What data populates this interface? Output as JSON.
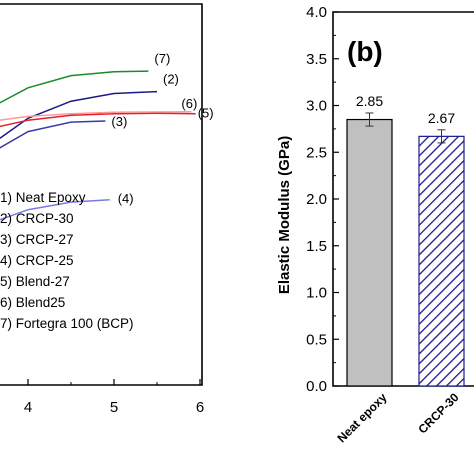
{
  "chart_data": [
    {
      "type": "line",
      "panel": "a",
      "xlabel": "",
      "ylabel": "",
      "x_ticks": [
        "4",
        "5",
        "6"
      ],
      "xlim_visible": [
        3.5,
        6.0
      ],
      "series": [
        {
          "label": "(1)",
          "name": "Neat Epoxy",
          "color": "#000000",
          "visible": false
        },
        {
          "label": "(2)",
          "name": "CRCP-30",
          "color": "#1a1a8c",
          "end_x": 5.5,
          "points": [
            [
              3.5,
              0.62
            ],
            [
              4.0,
              0.7
            ],
            [
              4.5,
              0.745
            ],
            [
              5.0,
              0.765
            ],
            [
              5.5,
              0.77
            ]
          ]
        },
        {
          "label": "(3)",
          "name": "CRCP-27",
          "color": "#3a3aa8",
          "end_x": 4.9,
          "points": [
            [
              3.5,
              0.6
            ],
            [
              4.0,
              0.665
            ],
            [
              4.5,
              0.69
            ],
            [
              4.9,
              0.693
            ]
          ]
        },
        {
          "label": "(4)",
          "name": "CRCP-25",
          "color": "#7a7ae6",
          "end_x": 4.95,
          "points": [
            [
              3.5,
              0.42
            ],
            [
              4.0,
              0.46
            ],
            [
              4.5,
              0.48
            ],
            [
              4.95,
              0.486
            ]
          ]
        },
        {
          "label": "(5)",
          "name": "Blend-27",
          "color": "#e0202a",
          "end_x": 5.95,
          "points": [
            [
              3.5,
              0.67
            ],
            [
              4.0,
              0.695
            ],
            [
              4.5,
              0.708
            ],
            [
              5.0,
              0.712
            ],
            [
              5.5,
              0.713
            ],
            [
              5.95,
              0.712
            ]
          ]
        },
        {
          "label": "(6)",
          "name": "Blend25",
          "color": "#ff9999",
          "end_x": 5.9,
          "points": [
            [
              3.5,
              0.69
            ],
            [
              4.0,
              0.705
            ],
            [
              4.5,
              0.712
            ],
            [
              5.0,
              0.716
            ],
            [
              5.9,
              0.717
            ]
          ]
        },
        {
          "label": "(7)",
          "name": "Fortegra 100 (BCP)",
          "color": "#1a8c2a",
          "end_x": 5.4,
          "points": [
            [
              3.5,
              0.72
            ],
            [
              4.0,
              0.78
            ],
            [
              4.5,
              0.812
            ],
            [
              5.0,
              0.822
            ],
            [
              5.4,
              0.824
            ]
          ]
        }
      ],
      "legend": [
        {
          "label": "1) Neat Epoxy"
        },
        {
          "label": "2) CRCP-30"
        },
        {
          "label": "3) CRCP-27"
        },
        {
          "label": "4) CRCP-25"
        },
        {
          "label": "5) Blend-27"
        },
        {
          "label": "6) Blend25"
        },
        {
          "label": "7) Fortegra 100 (BCP)"
        }
      ]
    },
    {
      "type": "bar",
      "panel": "b",
      "panel_label": "(b)",
      "ylabel": "Elastic Modulus (GPa)",
      "ylim": [
        0.0,
        4.0
      ],
      "y_ticks": [
        "0.0",
        "0.5",
        "1.0",
        "1.5",
        "2.0",
        "2.5",
        "3.0",
        "3.5",
        "4.0"
      ],
      "categories": [
        "Neat epoxy",
        "CRCP-30"
      ],
      "values": [
        2.85,
        2.67
      ],
      "value_labels": [
        "2.85",
        "2.67"
      ],
      "errors": [
        0.07,
        0.07
      ],
      "bar_styles": [
        {
          "fill": "#c0c0c0",
          "pattern": "solid"
        },
        {
          "fill": "#ffffff",
          "pattern": "hatch",
          "hatch_color": "#1a1a8c"
        }
      ]
    }
  ]
}
